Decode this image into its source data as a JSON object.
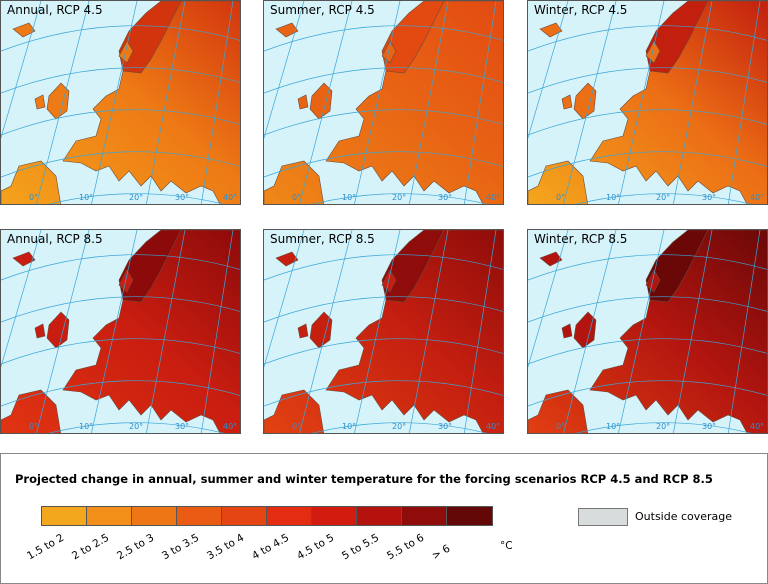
{
  "panels": [
    {
      "title": "Annual, RCP 4.5",
      "base": "#f4a21c",
      "mid": "#ee7a15",
      "hot": "#d2350e"
    },
    {
      "title": "Summer, RCP 4.5",
      "base": "#ef8818",
      "mid": "#e86414",
      "hot": "#e24a12"
    },
    {
      "title": "Winter, RCP 4.5",
      "base": "#f4a61d",
      "mid": "#ec6e15",
      "hot": "#c21f0e"
    },
    {
      "title": "Annual, RCP 8.5",
      "base": "#e13412",
      "mid": "#c81d10",
      "hot": "#8c0a0a"
    },
    {
      "title": "Summer, RCP 8.5",
      "base": "#e24212",
      "mid": "#c51f10",
      "hot": "#8e0c0a"
    },
    {
      "title": "Winter, RCP 8.5",
      "base": "#e23f12",
      "mid": "#b2150f",
      "hot": "#6a0808"
    }
  ],
  "lon_labels": [
    "0°",
    "10°",
    "20°",
    "30°",
    "40°"
  ],
  "legend": {
    "title": "Projected change in annual, summer and winter temperature for the forcing scenarios RCP 4.5 and RCP 8.5",
    "classes": [
      {
        "label": "1.5 to 2",
        "color": "#f3a71c"
      },
      {
        "label": "2 to 2.5",
        "color": "#f18f18"
      },
      {
        "label": "2.5 to 3",
        "color": "#ee7615"
      },
      {
        "label": "3 to 3.5",
        "color": "#ea5c13"
      },
      {
        "label": "3.5 to 4",
        "color": "#e54512"
      },
      {
        "label": "4 to 4.5",
        "color": "#e32c11"
      },
      {
        "label": "4.5 to 5",
        "color": "#d21c10"
      },
      {
        "label": "5 to 5.5",
        "color": "#b5120e"
      },
      {
        "label": "5.5 to 6",
        "color": "#8f0c0b"
      },
      {
        "label": "> 6",
        "color": "#640707"
      }
    ],
    "unit": "°C",
    "outside_label": "Outside coverage",
    "outside_color": "#d9dcdc"
  }
}
